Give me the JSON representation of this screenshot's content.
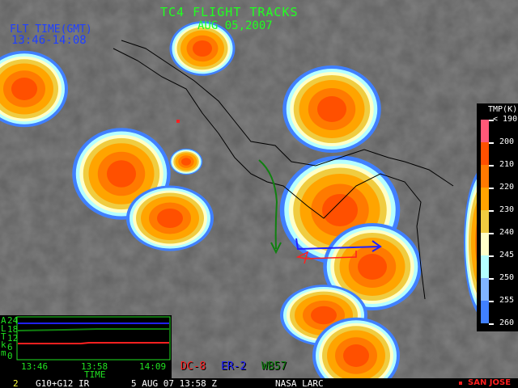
{
  "header": {
    "title": "TC4 FLIGHT TRACKS",
    "date": "AUG 05,2007",
    "flt_time_label": "FLT TIME(GMT)",
    "flt_time_range": "13:46-14:08"
  },
  "colorbar": {
    "title": "TMP(K)",
    "labels": [
      "< 190",
      "200",
      "210",
      "220",
      "230",
      "240",
      "245",
      "250",
      "255",
      "260"
    ],
    "colors": [
      "#ff5878",
      "#ff5000",
      "#ff7a00",
      "#ffa400",
      "#f0cc40",
      "#ffffc8",
      "#b4ffff",
      "#80b4ff",
      "#4080ff"
    ]
  },
  "altitude_chart": {
    "axis_letters": [
      "A",
      "L",
      "T",
      "k",
      "m"
    ],
    "y_ticks": [
      "24",
      "18",
      "12",
      "6",
      "0"
    ],
    "x_ticks": [
      "13:46",
      "13:58",
      "14:09"
    ],
    "xlabel": "TIME",
    "unit": "km",
    "series": [
      {
        "name": "ER-2",
        "color": "#2020ff",
        "altitude_km": 20
      },
      {
        "name": "WB57",
        "color": "#108010",
        "altitude_km": 17
      },
      {
        "name": "DC-8",
        "color": "#ff2020",
        "altitude_km": 10
      }
    ]
  },
  "legend": [
    {
      "label": "DC-8",
      "color": "#ff2020"
    },
    {
      "label": "ER-2",
      "color": "#2020ff"
    },
    {
      "label": "WB57",
      "color": "#108010"
    }
  ],
  "status_bar": {
    "frame": "2",
    "sensor": "G10+G12 IR",
    "datetime": "5 AUG 07 13:58 Z",
    "source": "NASA LARC",
    "location": "SAN JOSE",
    "location_color": "#ff2020"
  }
}
